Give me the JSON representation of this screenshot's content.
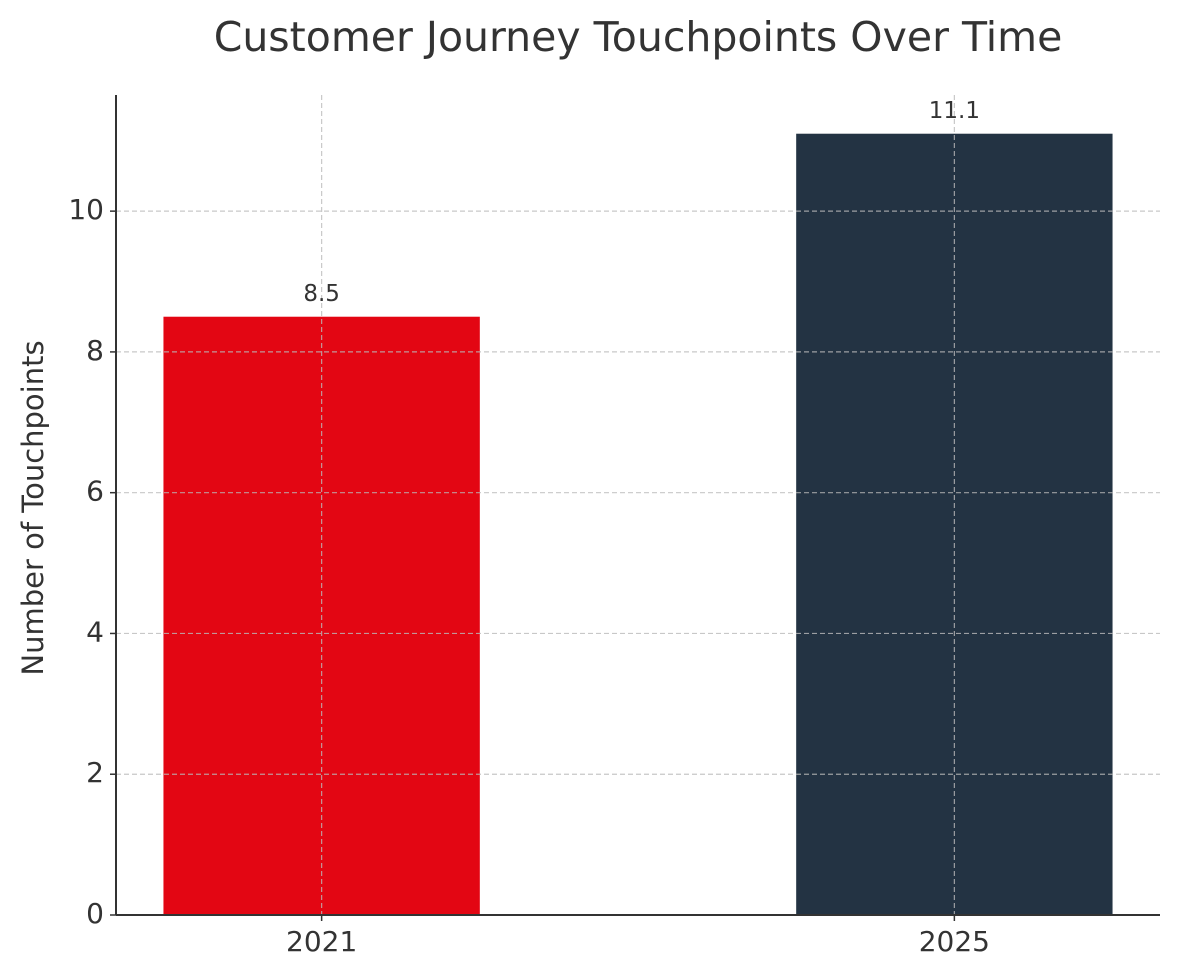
{
  "chart_data": {
    "type": "bar",
    "title": "Customer Journey Touchpoints Over Time",
    "y_label": "Number of Touchpoints",
    "categories": [
      "2021",
      "2025"
    ],
    "values": [
      8.5,
      11.1
    ],
    "colors": [
      "#e30613",
      "#233343"
    ],
    "ylim": [
      0,
      11.65
    ],
    "yticks": [
      0,
      2,
      4,
      6,
      8,
      10
    ],
    "grid": true
  }
}
